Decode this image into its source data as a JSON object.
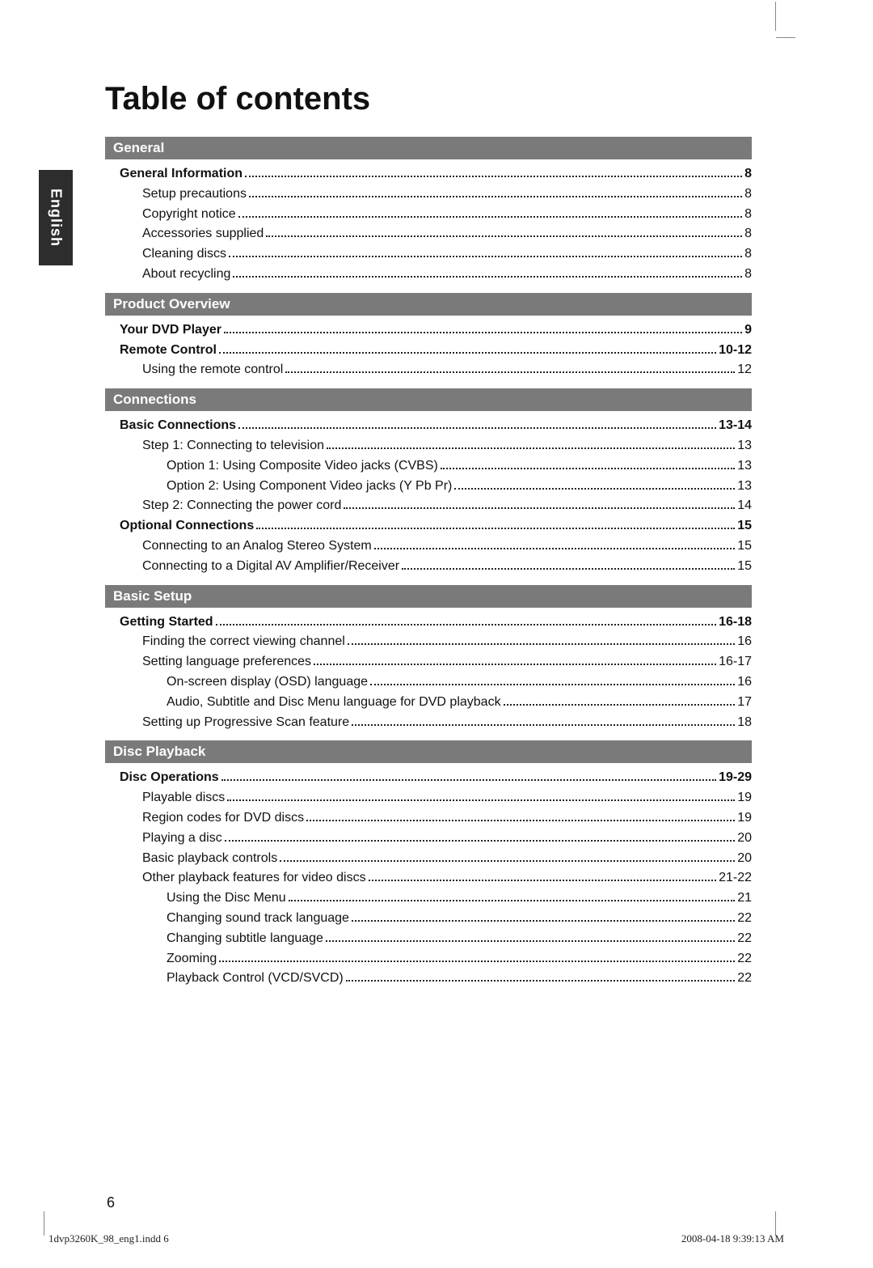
{
  "title": "Table of contents",
  "language_tab": "English",
  "page_number": "6",
  "footer_left": "1dvp3260K_98_eng1.indd   6",
  "footer_right": "2008-04-18   9:39:13 AM",
  "colors": {
    "section_header_bg": "#7a7a7a",
    "section_header_fg": "#ffffff",
    "lang_tab_bg": "#2d2d2d",
    "lang_tab_fg": "#ffffff",
    "page_bg": "#ffffff",
    "text": "#111111"
  },
  "typography": {
    "title_fontsize": 40,
    "section_header_fontsize": 17,
    "row_fontsize": 16,
    "footer_fontsize": 13
  },
  "sections": [
    {
      "header": "General",
      "items": [
        {
          "level": 0,
          "label": "General Information",
          "page": "8"
        },
        {
          "level": 1,
          "label": "Setup precautions",
          "page": "8"
        },
        {
          "level": 1,
          "label": "Copyright notice",
          "page": "8"
        },
        {
          "level": 1,
          "label": "Accessories supplied",
          "page": "8"
        },
        {
          "level": 1,
          "label": "Cleaning discs",
          "page": "8"
        },
        {
          "level": 1,
          "label": "About recycling",
          "page": "8"
        }
      ]
    },
    {
      "header": "Product Overview",
      "items": [
        {
          "level": 0,
          "label": "Your DVD Player",
          "page": "9"
        },
        {
          "level": 0,
          "label": "Remote Control",
          "page": "10-12"
        },
        {
          "level": 1,
          "label": "Using the remote control",
          "page": "12"
        }
      ]
    },
    {
      "header": "Connections",
      "items": [
        {
          "level": 0,
          "label": "Basic Connections",
          "page": "13-14"
        },
        {
          "level": 1,
          "label": "Step 1: Connecting to television",
          "page": "13"
        },
        {
          "level": 2,
          "label": "Option 1: Using Composite Video jacks (CVBS)",
          "page": "13"
        },
        {
          "level": 2,
          "label": "Option 2: Using Component Video jacks (Y Pb Pr)",
          "page": "13"
        },
        {
          "level": 1,
          "label": "Step 2: Connecting the power cord",
          "page": "14"
        },
        {
          "level": 0,
          "label": "Optional Connections",
          "page": "15"
        },
        {
          "level": 1,
          "label": "Connecting to an Analog Stereo System",
          "page": "15"
        },
        {
          "level": 1,
          "label": "Connecting to a Digital AV Amplifier/Receiver",
          "page": "15"
        }
      ]
    },
    {
      "header": "Basic Setup",
      "items": [
        {
          "level": 0,
          "label": "Getting Started",
          "page": "16-18"
        },
        {
          "level": 1,
          "label": "Finding the correct viewing channel",
          "page": "16"
        },
        {
          "level": 1,
          "label": "Setting language preferences",
          "page": "16-17"
        },
        {
          "level": 2,
          "label": "On-screen display (OSD) language",
          "page": "16"
        },
        {
          "level": 2,
          "label": "Audio, Subtitle and Disc Menu language for DVD playback",
          "page": "17"
        },
        {
          "level": 1,
          "label": "Setting up Progressive Scan feature",
          "page": "18"
        }
      ]
    },
    {
      "header": "Disc Playback",
      "items": [
        {
          "level": 0,
          "label": "Disc Operations",
          "page": "19-29"
        },
        {
          "level": 1,
          "label": "Playable discs",
          "page": "19"
        },
        {
          "level": 1,
          "label": "Region codes for DVD discs",
          "page": "19"
        },
        {
          "level": 1,
          "label": "Playing a disc",
          "page": "20"
        },
        {
          "level": 1,
          "label": "Basic playback controls",
          "page": "20"
        },
        {
          "level": 1,
          "label": "Other playback features for video discs",
          "page": "21-22"
        },
        {
          "level": 2,
          "label": "Using the Disc Menu",
          "page": "21"
        },
        {
          "level": 2,
          "label": "Changing sound track language",
          "page": "22"
        },
        {
          "level": 2,
          "label": "Changing subtitle language",
          "page": "22"
        },
        {
          "level": 2,
          "label": "Zooming",
          "page": "22"
        },
        {
          "level": 2,
          "label": "Playback Control (VCD/SVCD)",
          "page": "22"
        }
      ]
    }
  ]
}
